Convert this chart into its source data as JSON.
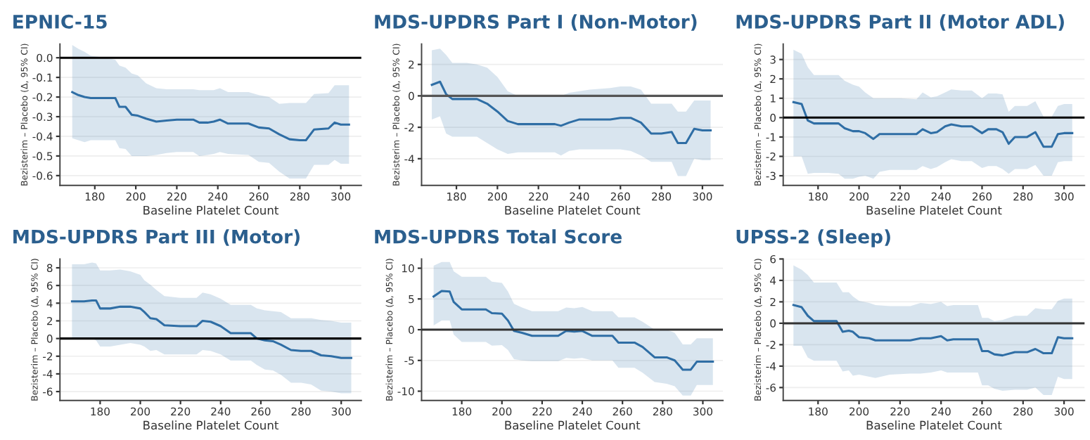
{
  "chart_data": [
    {
      "type": "line",
      "title": "EPNIC-15",
      "xlabel": "Baseline Platelet Count",
      "ylabel": "Bezisterim – Placebo (Δ, 95% CI)",
      "grid": "y",
      "xlim": [
        163,
        310
      ],
      "xticks": [
        180,
        200,
        220,
        240,
        260,
        280,
        300
      ],
      "ylim": [
        -0.65,
        0.07
      ],
      "yticks": [
        -0.6,
        -0.5,
        -0.4,
        -0.3,
        -0.2,
        -0.1,
        {
          "value": 0,
          "label": "0.0"
        }
      ],
      "ref_lines": [
        {
          "axis": "y",
          "value": 0,
          "color": "#000000"
        }
      ],
      "series": [
        {
          "color": "#2f6ea5",
          "x": [
            169,
            172,
            175,
            178,
            185,
            190,
            192,
            195,
            198,
            201,
            205,
            210,
            215,
            220,
            228,
            231,
            235,
            238,
            241,
            245,
            255,
            260,
            265,
            270,
            275,
            280,
            283,
            287,
            294,
            297,
            300,
            304
          ],
          "values": [
            -0.175,
            -0.19,
            -0.2,
            -0.205,
            -0.205,
            -0.205,
            -0.25,
            -0.25,
            -0.29,
            -0.295,
            -0.31,
            -0.325,
            -0.32,
            -0.315,
            -0.315,
            -0.33,
            -0.33,
            -0.325,
            -0.315,
            -0.335,
            -0.335,
            -0.355,
            -0.36,
            -0.39,
            -0.415,
            -0.42,
            -0.42,
            -0.365,
            -0.36,
            -0.33,
            -0.34,
            -0.34
          ],
          "upper": [
            0.065,
            0.045,
            0.03,
            0.01,
            0.0,
            -0.01,
            -0.04,
            -0.05,
            -0.08,
            -0.09,
            -0.13,
            -0.155,
            -0.16,
            -0.16,
            -0.16,
            -0.165,
            -0.165,
            -0.165,
            -0.155,
            -0.175,
            -0.175,
            -0.19,
            -0.2,
            -0.235,
            -0.23,
            -0.23,
            -0.23,
            -0.185,
            -0.18,
            -0.14,
            -0.14,
            -0.14
          ],
          "lower": [
            -0.41,
            -0.42,
            -0.43,
            -0.42,
            -0.42,
            -0.42,
            -0.46,
            -0.465,
            -0.5,
            -0.5,
            -0.5,
            -0.495,
            -0.485,
            -0.48,
            -0.48,
            -0.5,
            -0.495,
            -0.49,
            -0.48,
            -0.49,
            -0.495,
            -0.53,
            -0.535,
            -0.58,
            -0.615,
            -0.615,
            -0.615,
            -0.545,
            -0.545,
            -0.52,
            -0.54,
            -0.54
          ]
        }
      ]
    },
    {
      "type": "line",
      "title": "MDS-UPDRS Part I (Non-Motor)",
      "xlabel": "Baseline Platelet Count",
      "ylabel": "Bezisterim – Placebo (Δ, 95% CI)",
      "grid": "y",
      "xlim": [
        163,
        310
      ],
      "xticks": [
        180,
        200,
        220,
        240,
        260,
        280,
        300
      ],
      "ylim": [
        -5.7,
        3.3
      ],
      "yticks": [
        -4,
        -2,
        0,
        2
      ],
      "ref_lines": [
        {
          "axis": "y",
          "value": 0,
          "color": "#555555"
        }
      ],
      "series": [
        {
          "color": "#2f6ea5",
          "x": [
            168,
            172,
            175,
            178,
            185,
            190,
            195,
            200,
            205,
            210,
            220,
            228,
            231,
            235,
            240,
            245,
            255,
            260,
            265,
            270,
            275,
            280,
            285,
            288,
            292,
            296,
            300,
            304
          ],
          "values": [
            0.7,
            0.9,
            0.1,
            -0.2,
            -0.2,
            -0.2,
            -0.5,
            -1.0,
            -1.6,
            -1.8,
            -1.8,
            -1.8,
            -1.9,
            -1.7,
            -1.5,
            -1.5,
            -1.5,
            -1.4,
            -1.4,
            -1.7,
            -2.4,
            -2.4,
            -2.3,
            -3.0,
            -3.0,
            -2.1,
            -2.2,
            -2.2
          ],
          "upper": [
            2.9,
            3.0,
            2.6,
            2.1,
            2.1,
            2.0,
            1.8,
            1.2,
            0.3,
            0.0,
            0.0,
            0.0,
            0.0,
            0.2,
            0.3,
            0.4,
            0.5,
            0.6,
            0.6,
            0.4,
            -0.5,
            -0.5,
            -0.5,
            -1.0,
            -1.0,
            -0.3,
            -0.3,
            -0.3
          ],
          "lower": [
            -1.5,
            -1.3,
            -2.4,
            -2.6,
            -2.6,
            -2.6,
            -3.0,
            -3.4,
            -3.7,
            -3.6,
            -3.6,
            -3.6,
            -3.8,
            -3.5,
            -3.4,
            -3.4,
            -3.4,
            -3.4,
            -3.5,
            -3.8,
            -4.2,
            -4.2,
            -4.2,
            -5.1,
            -5.1,
            -4.0,
            -4.1,
            -4.1
          ]
        }
      ]
    },
    {
      "type": "line",
      "title": "MDS-UPDRS Part II (Motor ADL)",
      "xlabel": "Baseline Platelet Count",
      "ylabel": "Bezisterim – Placebo (Δ, 95% CI)",
      "grid": "y",
      "xlim": [
        163,
        310
      ],
      "xticks": [
        180,
        200,
        220,
        240,
        260,
        280,
        300
      ],
      "ylim": [
        -3.5,
        3.8
      ],
      "yticks": [
        -3,
        -2,
        -1,
        0,
        1,
        2,
        3
      ],
      "ref_lines": [
        {
          "axis": "y",
          "value": 0,
          "color": "#000000"
        }
      ],
      "series": [
        {
          "color": "#2f6ea5",
          "x": [
            168,
            172,
            175,
            178,
            185,
            190,
            193,
            197,
            200,
            203,
            207,
            210,
            215,
            220,
            228,
            231,
            235,
            238,
            242,
            245,
            250,
            255,
            260,
            263,
            267,
            270,
            273,
            276,
            282,
            286,
            290,
            294,
            297,
            300,
            304
          ],
          "values": [
            0.8,
            0.7,
            -0.15,
            -0.3,
            -0.3,
            -0.3,
            -0.55,
            -0.7,
            -0.7,
            -0.8,
            -1.1,
            -0.85,
            -0.85,
            -0.85,
            -0.85,
            -0.6,
            -0.8,
            -0.75,
            -0.45,
            -0.35,
            -0.45,
            -0.45,
            -0.8,
            -0.6,
            -0.6,
            -0.75,
            -1.35,
            -1.0,
            -1.0,
            -0.75,
            -1.5,
            -1.5,
            -0.85,
            -0.8,
            -0.8
          ],
          "upper": [
            3.5,
            3.3,
            2.6,
            2.2,
            2.2,
            2.2,
            1.9,
            1.7,
            1.6,
            1.3,
            1.0,
            1.0,
            1.0,
            1.0,
            0.95,
            1.3,
            1.05,
            1.1,
            1.3,
            1.45,
            1.4,
            1.4,
            1.0,
            1.25,
            1.25,
            1.2,
            0.3,
            0.6,
            0.6,
            0.85,
            0.05,
            0.05,
            0.6,
            0.7,
            0.7
          ],
          "lower": [
            -2.0,
            -2.0,
            -2.9,
            -2.85,
            -2.85,
            -2.9,
            -3.15,
            -3.15,
            -3.05,
            -3.0,
            -3.15,
            -2.8,
            -2.7,
            -2.7,
            -2.7,
            -2.5,
            -2.65,
            -2.55,
            -2.3,
            -2.15,
            -2.25,
            -2.25,
            -2.6,
            -2.5,
            -2.5,
            -2.65,
            -2.9,
            -2.65,
            -2.65,
            -2.45,
            -3.0,
            -3.0,
            -2.3,
            -2.25,
            -2.25
          ]
        }
      ]
    },
    {
      "type": "line",
      "title": "MDS-UPDRS Part III (Motor)",
      "xlabel": "Baseline Platelet Count",
      "ylabel": "Bezisterim – Placebo (Δ, 95% CI)",
      "grid": "y",
      "xlim": [
        160,
        310
      ],
      "xticks": [
        180,
        200,
        220,
        240,
        260,
        280,
        300
      ],
      "ylim": [
        -7,
        9
      ],
      "yticks": [
        -6,
        -4,
        -2,
        0,
        2,
        4,
        6,
        8
      ],
      "ref_lines": [
        {
          "axis": "y",
          "value": 0,
          "color": "#000000"
        }
      ],
      "series": [
        {
          "color": "#2f6ea5",
          "x": [
            166,
            172,
            176,
            178,
            180,
            185,
            190,
            195,
            200,
            202,
            205,
            208,
            212,
            220,
            228,
            231,
            235,
            240,
            245,
            255,
            258,
            262,
            266,
            270,
            275,
            280,
            285,
            290,
            295,
            300,
            305
          ],
          "values": [
            4.2,
            4.2,
            4.3,
            4.3,
            3.4,
            3.4,
            3.6,
            3.6,
            3.4,
            3.0,
            2.3,
            2.2,
            1.5,
            1.4,
            1.4,
            2.0,
            1.9,
            1.4,
            0.6,
            0.6,
            0.0,
            -0.2,
            -0.3,
            -0.7,
            -1.3,
            -1.4,
            -1.4,
            -1.9,
            -2.0,
            -2.2,
            -2.2
          ],
          "upper": [
            8.4,
            8.4,
            8.6,
            8.5,
            7.7,
            7.7,
            7.8,
            7.6,
            7.2,
            6.6,
            6.1,
            5.5,
            4.8,
            4.6,
            4.6,
            5.2,
            5.0,
            4.5,
            3.8,
            3.8,
            3.4,
            3.2,
            3.1,
            3.0,
            2.3,
            2.3,
            2.3,
            2.1,
            2.0,
            1.8,
            1.8
          ],
          "lower": [
            0.0,
            0.0,
            0.0,
            -0.2,
            -0.9,
            -0.9,
            -0.7,
            -0.5,
            -0.7,
            -0.9,
            -1.4,
            -1.3,
            -1.8,
            -1.8,
            -1.8,
            -1.3,
            -1.4,
            -1.8,
            -2.5,
            -2.5,
            -3.0,
            -3.5,
            -3.6,
            -4.1,
            -5.0,
            -5.0,
            -5.2,
            -5.9,
            -6.0,
            -6.2,
            -6.2
          ]
        }
      ]
    },
    {
      "type": "line",
      "title": "MDS-UPDRS Total Score",
      "xlabel": "Baseline Platelet Count",
      "ylabel": "Bezisterim – Placebo (Δ, 95% CI)",
      "grid": "y",
      "xlim": [
        160,
        310
      ],
      "xticks": [
        180,
        200,
        220,
        240,
        260,
        280,
        300
      ],
      "ylim": [
        -11.5,
        11.5
      ],
      "yticks": [
        -10,
        -5,
        0,
        5,
        10
      ],
      "ref_lines": [
        {
          "axis": "y",
          "value": 0,
          "color": "#333333"
        }
      ],
      "series": [
        {
          "color": "#2f6ea5",
          "x": [
            166,
            170,
            174,
            176,
            180,
            185,
            192,
            195,
            200,
            203,
            206,
            210,
            215,
            220,
            228,
            232,
            236,
            240,
            245,
            255,
            258,
            262,
            266,
            270,
            276,
            282,
            286,
            290,
            294,
            297,
            300,
            305
          ],
          "values": [
            5.4,
            6.3,
            6.2,
            4.5,
            3.3,
            3.3,
            3.3,
            2.7,
            2.6,
            1.5,
            -0.2,
            -0.5,
            -1.0,
            -1.0,
            -1.0,
            -0.2,
            -0.3,
            -0.2,
            -1.0,
            -1.0,
            -2.1,
            -2.1,
            -2.1,
            -2.8,
            -4.5,
            -4.5,
            -5.0,
            -6.5,
            -6.5,
            -5.2,
            -5.2,
            -5.2
          ],
          "upper": [
            10.4,
            11.0,
            11.0,
            9.5,
            8.6,
            8.6,
            8.6,
            7.8,
            7.6,
            6.2,
            4.2,
            3.6,
            3.0,
            3.0,
            3.0,
            3.6,
            3.5,
            3.7,
            3.0,
            3.0,
            2.0,
            2.0,
            2.0,
            1.3,
            0.0,
            0.0,
            -0.5,
            -2.4,
            -2.4,
            -1.4,
            -1.4,
            -1.4
          ],
          "lower": [
            0.7,
            1.5,
            1.5,
            -0.8,
            -2.0,
            -2.0,
            -2.0,
            -2.6,
            -2.5,
            -3.3,
            -4.8,
            -5.0,
            -5.1,
            -5.1,
            -5.1,
            -4.6,
            -4.7,
            -4.6,
            -5.0,
            -5.0,
            -6.2,
            -6.2,
            -6.2,
            -7.0,
            -8.5,
            -8.8,
            -9.2,
            -10.7,
            -10.7,
            -9.0,
            -9.0,
            -9.0
          ]
        }
      ]
    },
    {
      "type": "line",
      "title": "UPSS-2 (Sleep)",
      "xlabel": "Baseline Platelet Count",
      "ylabel": "Bezisterim – Placebo (Δ, 95% CI)",
      "grid": "y",
      "xlim": [
        163,
        310
      ],
      "xticks": [
        180,
        200,
        220,
        240,
        260,
        280,
        300
      ],
      "ylim": [
        -7.2,
        6
      ],
      "yticks": [
        -6,
        -4,
        -2,
        0,
        2,
        4,
        6
      ],
      "ref_lines": [
        {
          "axis": "y",
          "value": 0,
          "color": "#333333"
        }
      ],
      "series": [
        {
          "color": "#2f6ea5",
          "x": [
            168,
            172,
            175,
            178,
            182,
            189,
            192,
            195,
            197,
            200,
            205,
            208,
            215,
            225,
            230,
            235,
            240,
            243,
            246,
            258,
            260,
            263,
            266,
            270,
            276,
            282,
            286,
            290,
            294,
            297,
            300,
            304
          ],
          "values": [
            1.7,
            1.5,
            0.7,
            0.2,
            0.2,
            0.2,
            -0.8,
            -0.7,
            -0.8,
            -1.3,
            -1.4,
            -1.6,
            -1.6,
            -1.6,
            -1.4,
            -1.4,
            -1.2,
            -1.6,
            -1.5,
            -1.5,
            -2.6,
            -2.6,
            -2.9,
            -3.0,
            -2.7,
            -2.7,
            -2.4,
            -2.8,
            -2.8,
            -1.3,
            -1.4,
            -1.4
          ],
          "upper": [
            5.4,
            5.0,
            4.5,
            3.8,
            3.8,
            3.8,
            2.9,
            2.9,
            2.5,
            2.1,
            1.9,
            1.7,
            1.6,
            1.6,
            1.9,
            1.8,
            2.0,
            1.6,
            1.7,
            1.7,
            0.5,
            0.5,
            0.2,
            0.3,
            0.7,
            0.7,
            1.4,
            1.3,
            1.3,
            2.1,
            2.3,
            2.3
          ],
          "lower": [
            -2.1,
            -2.1,
            -3.2,
            -3.5,
            -3.5,
            -3.5,
            -4.5,
            -4.4,
            -4.9,
            -4.8,
            -5.0,
            -5.1,
            -4.8,
            -4.7,
            -4.7,
            -4.6,
            -4.4,
            -4.6,
            -4.6,
            -4.6,
            -5.8,
            -5.8,
            -6.1,
            -6.3,
            -6.2,
            -6.2,
            -6.0,
            -6.7,
            -6.7,
            -5.0,
            -5.2,
            -5.2
          ]
        }
      ]
    }
  ]
}
